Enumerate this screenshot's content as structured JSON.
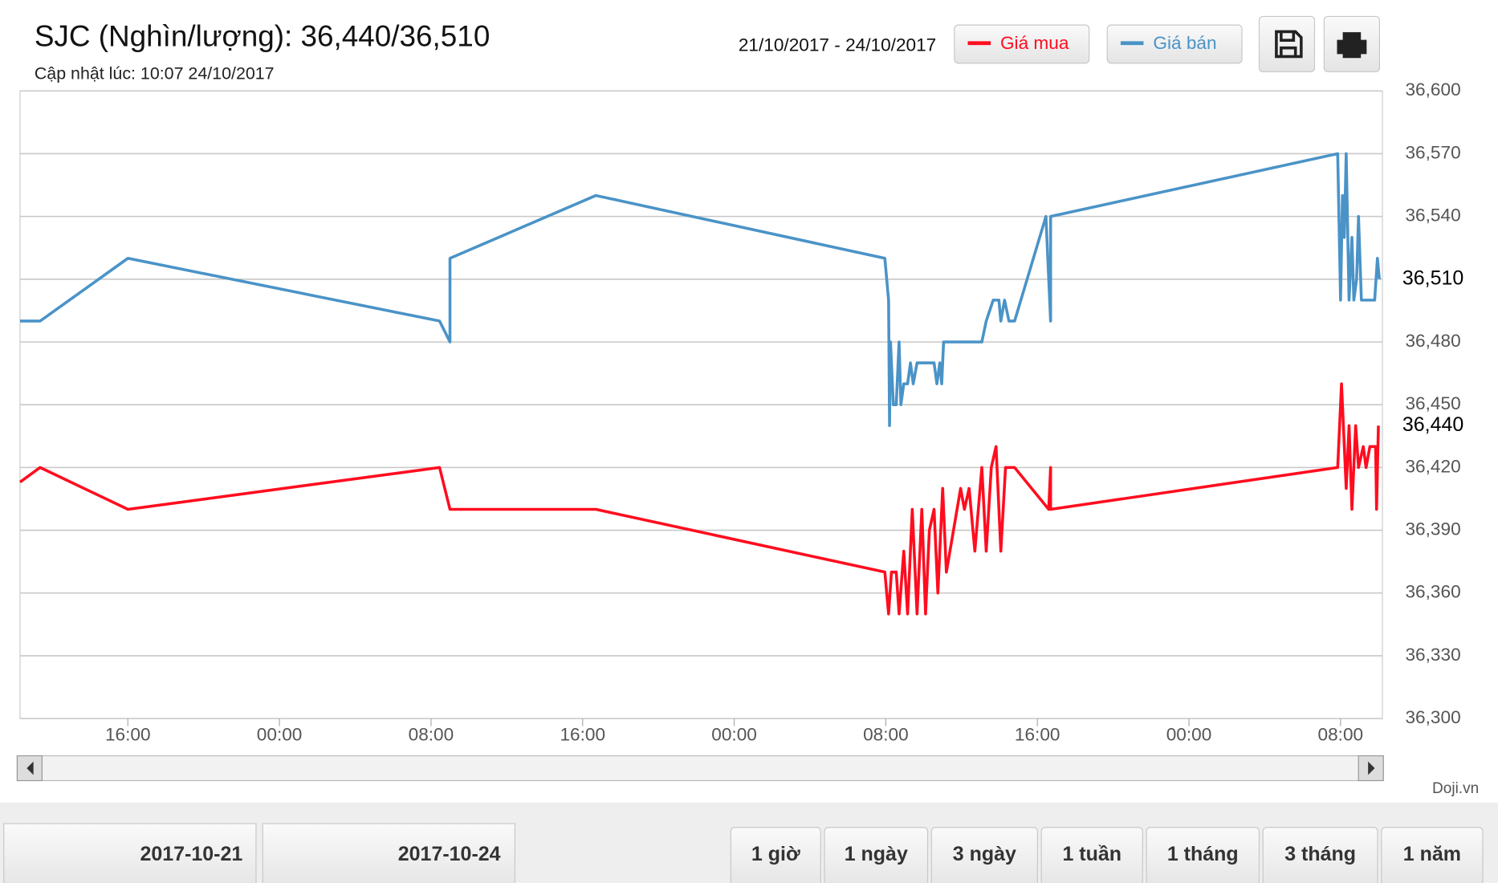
{
  "header": {
    "title": "SJC (Nghìn/lượng): 36,440/36,510",
    "subtitle": "Cập nhật lúc: 10:07 24/10/2017",
    "date_range": "21/10/2017 - 24/10/2017"
  },
  "chart_data": {
    "type": "line",
    "xlim": [
      10.31,
      82.21
    ],
    "xticks": [
      {
        "value": 16,
        "label": "16:00"
      },
      {
        "value": 24,
        "label": "00:00"
      },
      {
        "value": 32,
        "label": "08:00"
      },
      {
        "value": 40,
        "label": "16:00"
      },
      {
        "value": 48,
        "label": "00:00"
      },
      {
        "value": 56,
        "label": "08:00"
      },
      {
        "value": 64,
        "label": "16:00"
      },
      {
        "value": 72,
        "label": "00:00"
      },
      {
        "value": 80,
        "label": "08:00"
      }
    ],
    "ylim": [
      36300,
      36600
    ],
    "yticks": [
      {
        "value": 36300,
        "label": "36,300"
      },
      {
        "value": 36330,
        "label": "36,330"
      },
      {
        "value": 36360,
        "label": "36,360"
      },
      {
        "value": 36390,
        "label": "36,390"
      },
      {
        "value": 36420,
        "label": "36,420"
      },
      {
        "value": 36450,
        "label": "36,450"
      },
      {
        "value": 36480,
        "label": "36,480"
      },
      {
        "value": 36510,
        "label": "36,510"
      },
      {
        "value": 36540,
        "label": "36,540"
      },
      {
        "value": 36570,
        "label": "36,570"
      },
      {
        "value": 36600,
        "label": "36,600"
      }
    ],
    "grid": true,
    "current_values": [
      {
        "value": 36440,
        "label": "36,440"
      },
      {
        "value": 36510,
        "label": "36,510"
      }
    ],
    "series": [
      {
        "name": "Giá mua",
        "color": "#ff0d1f",
        "x": [
          10.31,
          11.37,
          16,
          32.45,
          33.0,
          40.7,
          55.95,
          56.15,
          56.3,
          56.55,
          56.7,
          56.95,
          57.15,
          57.4,
          57.65,
          57.9,
          58.1,
          58.3,
          58.55,
          58.75,
          59.0,
          59.2,
          59.95,
          60.15,
          60.4,
          60.7,
          61.07,
          61.3,
          61.57,
          61.82,
          62.07,
          62.32,
          62.8,
          64.6,
          64.7,
          64.7,
          79.85,
          80.05,
          80.3,
          80.45,
          80.6,
          80.8,
          80.95,
          81.2,
          81.35,
          81.55,
          81.85,
          81.9,
          82.0
        ],
        "values": [
          36413,
          36420,
          36400,
          36420,
          36400,
          36400,
          36370,
          36350,
          36370,
          36370,
          36350,
          36380,
          36350,
          36400,
          36350,
          36400,
          36350,
          36390,
          36400,
          36360,
          36410,
          36370,
          36410,
          36400,
          36410,
          36380,
          36420,
          36380,
          36420,
          36430,
          36380,
          36420,
          36420,
          36400,
          36420,
          36400,
          36420,
          36460,
          36410,
          36440,
          36400,
          36440,
          36420,
          36430,
          36420,
          36430,
          36430,
          36400,
          36440
        ]
      },
      {
        "name": "Giá bán",
        "color": "#4a93c7",
        "x": [
          10.31,
          11.37,
          16,
          32.45,
          33.0,
          33.0,
          40.7,
          55.95,
          56.15,
          56.2,
          56.25,
          56.4,
          56.55,
          56.7,
          56.8,
          56.95,
          57.15,
          57.3,
          57.45,
          57.65,
          57.95,
          58.3,
          58.55,
          58.7,
          58.85,
          58.95,
          59.05,
          61.07,
          61.3,
          61.67,
          61.97,
          62.07,
          62.27,
          62.5,
          62.8,
          64.45,
          64.7,
          64.7,
          79.85,
          80.0,
          80.1,
          80.2,
          80.3,
          80.45,
          80.6,
          80.7,
          80.85,
          80.95,
          81.1,
          81.8,
          81.95,
          82.05
        ],
        "values": [
          36490,
          36490,
          36520,
          36490,
          36480,
          36520,
          36550,
          36520,
          36500,
          36440,
          36480,
          36450,
          36450,
          36480,
          36450,
          36460,
          36460,
          36470,
          36460,
          36470,
          36470,
          36470,
          36470,
          36460,
          36470,
          36460,
          36480,
          36480,
          36490,
          36500,
          36500,
          36490,
          36500,
          36490,
          36490,
          36540,
          36490,
          36540,
          36570,
          36500,
          36550,
          36530,
          36570,
          36500,
          36530,
          36500,
          36510,
          36540,
          36500,
          36500,
          36520,
          36510
        ]
      }
    ]
  },
  "footer": {
    "source": "Doji.vn",
    "start_date": "2017-10-21",
    "end_date": "2017-10-24",
    "ranges": [
      "1 giờ",
      "1 ngày",
      "3 ngày",
      "1 tuần",
      "1 tháng",
      "3 tháng",
      "1 năm"
    ]
  }
}
